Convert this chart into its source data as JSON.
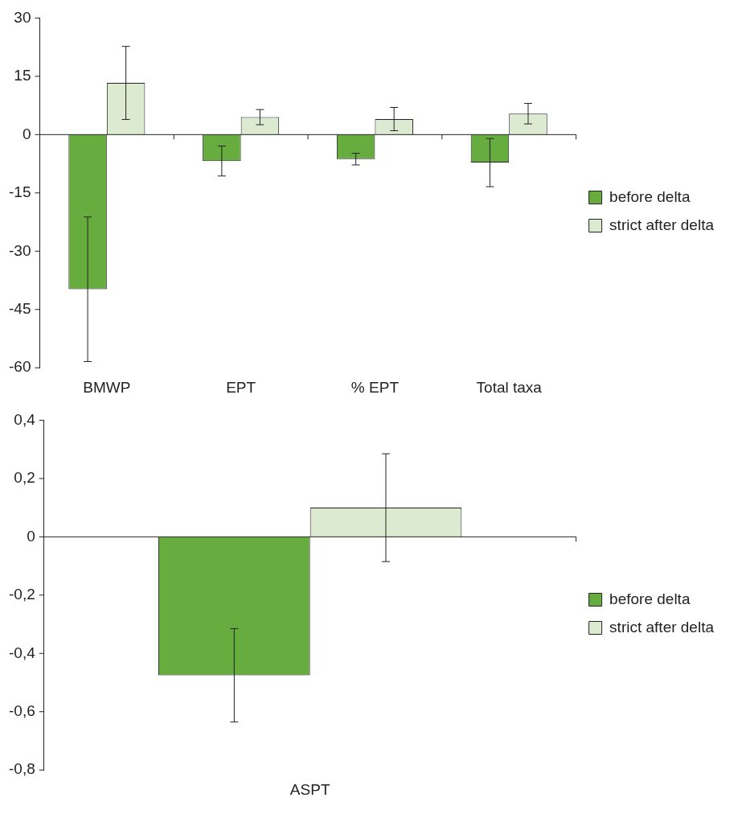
{
  "chart_data": [
    {
      "type": "bar",
      "categories": [
        "BMWP",
        "EPT",
        "% EPT",
        "Total taxa"
      ],
      "series": [
        {
          "name": "before delta",
          "color": "#66ac3e",
          "values": [
            -39.8,
            -6.8,
            -6.3,
            -7.2
          ],
          "errors": [
            18.6,
            3.85,
            1.5,
            6.2
          ]
        },
        {
          "name": "strict after delta",
          "color": "#dcead2",
          "values": [
            13.3,
            4.5,
            4.0,
            5.4
          ],
          "errors": [
            9.4,
            1.95,
            3,
            2.65
          ]
        }
      ],
      "ylim": [
        -60,
        30
      ],
      "yticks": [
        -60,
        -45,
        -30,
        -15,
        0,
        15,
        30
      ],
      "legend": "right"
    },
    {
      "type": "bar",
      "categories": [
        "ASPT"
      ],
      "series": [
        {
          "name": "before delta",
          "color": "#66ac3e",
          "values": [
            -0.475
          ],
          "errors": [
            0.16
          ]
        },
        {
          "name": "strict after delta",
          "color": "#dcead2",
          "values": [
            0.1
          ],
          "errors": [
            0.185
          ]
        }
      ],
      "ylim": [
        -0.8,
        0.4
      ],
      "yticks": [
        {
          "value": -0.8,
          "label": "-0,8"
        },
        {
          "value": -0.6,
          "label": "-0,6"
        },
        {
          "value": -0.4,
          "label": "-0,4"
        },
        {
          "value": -0.2,
          "label": "-0,2"
        },
        {
          "value": 0,
          "label": "0"
        },
        {
          "value": 0.2,
          "label": "0,2"
        },
        {
          "value": 0.4,
          "label": "0,4"
        }
      ],
      "legend": "right"
    }
  ]
}
